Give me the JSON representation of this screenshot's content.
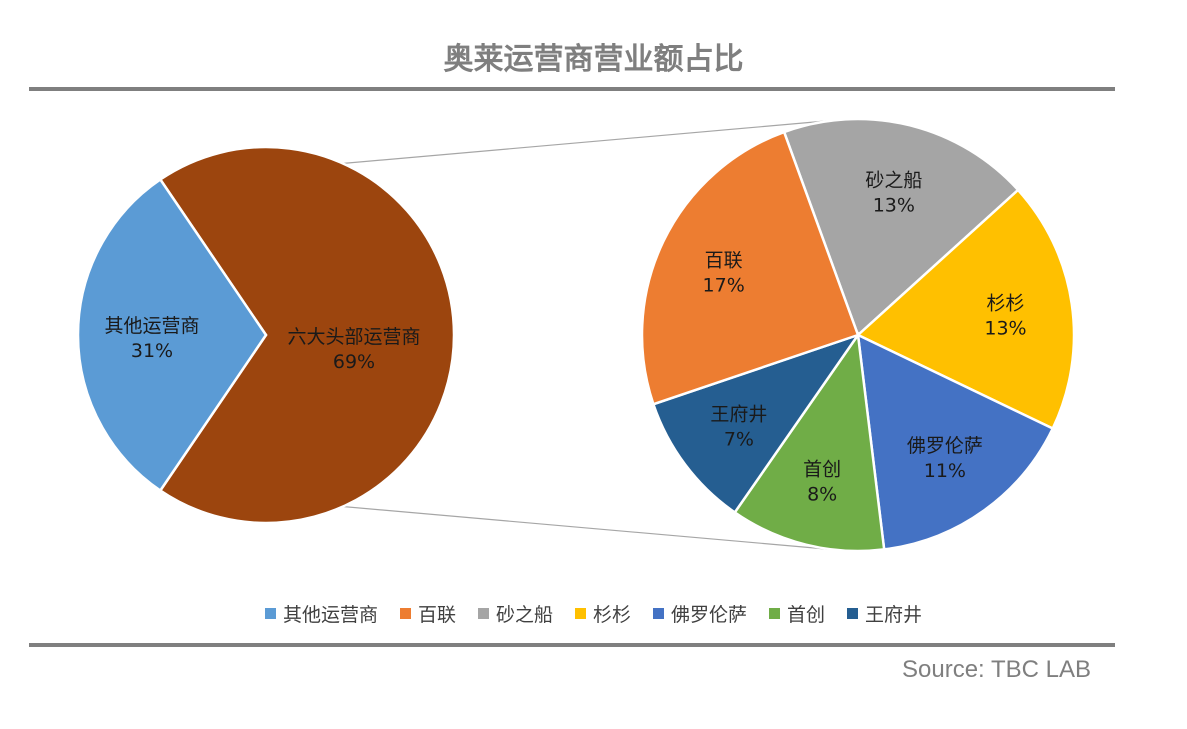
{
  "title": "奥莱运营商营业额占比",
  "source": "Source: TBC LAB",
  "chart_data": [
    {
      "type": "pie",
      "slices": [
        {
          "label": "其他运营商",
          "value": 31,
          "value_label": "31%",
          "color": "#5b9bd5"
        },
        {
          "label": "六大头部运营商",
          "value": 69,
          "value_label": "69%",
          "color": "#9c450e"
        }
      ]
    },
    {
      "type": "pie",
      "slices": [
        {
          "label": "砂之船",
          "value": 13,
          "value_label": "13%",
          "color": "#a5a5a5"
        },
        {
          "label": "杉杉",
          "value": 13,
          "value_label": "13%",
          "color": "#ffc000"
        },
        {
          "label": "佛罗伦萨",
          "value": 11,
          "value_label": "11%",
          "color": "#4472c4"
        },
        {
          "label": "首创",
          "value": 8,
          "value_label": "8%",
          "color": "#70ad47"
        },
        {
          "label": "王府井",
          "value": 7,
          "value_label": "7%",
          "color": "#255e91"
        },
        {
          "label": "百联",
          "value": 17,
          "value_label": "17%",
          "color": "#ed7d31"
        }
      ]
    }
  ],
  "legend": [
    {
      "label": "其他运营商",
      "color": "#5b9bd5"
    },
    {
      "label": "百联",
      "color": "#ed7d31"
    },
    {
      "label": "砂之船",
      "color": "#a5a5a5"
    },
    {
      "label": "杉杉",
      "color": "#ffc000"
    },
    {
      "label": "佛罗伦萨",
      "color": "#4472c4"
    },
    {
      "label": "首创",
      "color": "#70ad47"
    },
    {
      "label": "王府井",
      "color": "#255e91"
    }
  ]
}
